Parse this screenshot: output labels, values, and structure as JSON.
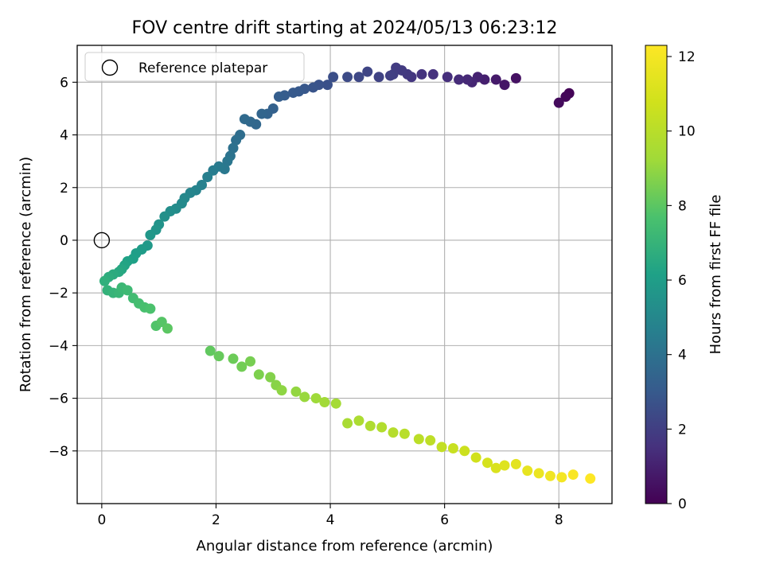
{
  "chart_data": {
    "type": "scatter",
    "title": "FOV centre drift starting at 2024/05/13 06:23:12",
    "xlabel": "Angular distance from reference (arcmin)",
    "ylabel": "Rotation from reference (arcmin)",
    "xlim": [
      -0.43,
      8.93
    ],
    "ylim": [
      -10.0,
      7.4
    ],
    "x_ticks": [
      0,
      2,
      4,
      6,
      8
    ],
    "y_ticks": [
      -8,
      -6,
      -4,
      -2,
      0,
      2,
      4,
      6
    ],
    "grid": true,
    "legend": {
      "position": "upper-left",
      "entries": [
        {
          "label": "Reference platepar",
          "marker": "open-circle"
        }
      ]
    },
    "reference_point": {
      "x": 0,
      "y": 0
    },
    "colorbar": {
      "label": "Hours from first FF file",
      "colormap": "viridis",
      "min": 0,
      "max": 12.3,
      "ticks": [
        0,
        2,
        4,
        6,
        8,
        10,
        12
      ]
    },
    "series": [
      {
        "points": [
          [
            8.18,
            5.58,
            0.1
          ],
          [
            8.12,
            5.45,
            0.2
          ],
          [
            8.0,
            5.22,
            0.3
          ],
          [
            7.25,
            6.15,
            0.5
          ],
          [
            7.05,
            5.9,
            0.65
          ],
          [
            6.9,
            6.1,
            0.8
          ],
          [
            6.7,
            6.1,
            0.95
          ],
          [
            6.58,
            6.2,
            1.05
          ],
          [
            6.48,
            6.0,
            1.15
          ],
          [
            6.4,
            6.1,
            1.25
          ],
          [
            6.25,
            6.1,
            1.35
          ],
          [
            6.05,
            6.2,
            1.45
          ],
          [
            5.8,
            6.3,
            1.55
          ],
          [
            5.6,
            6.3,
            1.62
          ],
          [
            5.42,
            6.2,
            1.7
          ],
          [
            5.35,
            6.3,
            1.78
          ],
          [
            5.25,
            6.45,
            1.85
          ],
          [
            5.15,
            6.55,
            1.9
          ],
          [
            5.1,
            6.3,
            1.98
          ],
          [
            5.05,
            6.25,
            2.05
          ],
          [
            4.85,
            6.2,
            2.15
          ],
          [
            4.65,
            6.4,
            2.25
          ],
          [
            4.5,
            6.2,
            2.35
          ],
          [
            4.3,
            6.2,
            2.45
          ],
          [
            4.05,
            6.2,
            2.55
          ],
          [
            3.95,
            5.9,
            2.65
          ],
          [
            3.8,
            5.9,
            2.72
          ],
          [
            3.7,
            5.8,
            2.8
          ],
          [
            3.55,
            5.75,
            2.88
          ],
          [
            3.45,
            5.65,
            2.95
          ],
          [
            3.35,
            5.6,
            3.02
          ],
          [
            3.2,
            5.5,
            3.1
          ],
          [
            3.1,
            5.45,
            3.18
          ],
          [
            3.0,
            5.0,
            3.3
          ],
          [
            2.9,
            4.8,
            3.4
          ],
          [
            2.8,
            4.8,
            3.48
          ],
          [
            2.7,
            4.4,
            3.55
          ],
          [
            2.6,
            4.5,
            3.62
          ],
          [
            2.5,
            4.6,
            3.7
          ],
          [
            2.42,
            4.0,
            3.8
          ],
          [
            2.35,
            3.8,
            3.9
          ],
          [
            2.3,
            3.5,
            4.0
          ],
          [
            2.25,
            3.2,
            4.1
          ],
          [
            2.2,
            3.0,
            4.2
          ],
          [
            2.15,
            2.7,
            4.3
          ],
          [
            2.05,
            2.8,
            4.4
          ],
          [
            1.95,
            2.65,
            4.5
          ],
          [
            1.85,
            2.4,
            4.6
          ],
          [
            1.75,
            2.1,
            4.7
          ],
          [
            1.65,
            1.9,
            4.8
          ],
          [
            1.55,
            1.8,
            4.9
          ],
          [
            1.45,
            1.6,
            5.0
          ],
          [
            1.4,
            1.4,
            5.1
          ],
          [
            1.3,
            1.2,
            5.2
          ],
          [
            1.2,
            1.1,
            5.3
          ],
          [
            1.1,
            0.9,
            5.4
          ],
          [
            1.0,
            0.6,
            5.5
          ],
          [
            0.95,
            0.4,
            5.6
          ],
          [
            0.85,
            0.2,
            5.7
          ],
          [
            0.8,
            -0.2,
            5.8
          ],
          [
            0.7,
            -0.35,
            5.9
          ],
          [
            0.6,
            -0.5,
            6.0
          ],
          [
            0.55,
            -0.7,
            6.1
          ],
          [
            0.45,
            -0.8,
            6.2
          ],
          [
            0.4,
            -0.95,
            6.3
          ],
          [
            0.35,
            -1.1,
            6.4
          ],
          [
            0.3,
            -1.2,
            6.5
          ],
          [
            0.2,
            -1.3,
            6.6
          ],
          [
            0.12,
            -1.4,
            6.7
          ],
          [
            0.05,
            -1.55,
            6.8
          ],
          [
            0.1,
            -1.9,
            6.9
          ],
          [
            0.2,
            -2.0,
            7.0
          ],
          [
            0.3,
            -2.0,
            7.1
          ],
          [
            0.35,
            -1.8,
            7.2
          ],
          [
            0.45,
            -1.9,
            7.3
          ],
          [
            0.55,
            -2.2,
            7.4
          ],
          [
            0.65,
            -2.4,
            7.5
          ],
          [
            0.75,
            -2.55,
            7.6
          ],
          [
            0.85,
            -2.6,
            7.7
          ],
          [
            0.95,
            -3.25,
            7.8
          ],
          [
            1.05,
            -3.1,
            7.9
          ],
          [
            1.15,
            -3.35,
            8.0
          ],
          [
            1.9,
            -4.2,
            8.1
          ],
          [
            2.05,
            -4.4,
            8.2
          ],
          [
            2.3,
            -4.5,
            8.3
          ],
          [
            2.45,
            -4.8,
            8.4
          ],
          [
            2.6,
            -4.6,
            8.5
          ],
          [
            2.75,
            -5.1,
            8.6
          ],
          [
            2.95,
            -5.2,
            8.7
          ],
          [
            3.05,
            -5.5,
            8.8
          ],
          [
            3.15,
            -5.7,
            8.9
          ],
          [
            3.4,
            -5.75,
            9.0
          ],
          [
            3.55,
            -5.95,
            9.1
          ],
          [
            3.75,
            -6.0,
            9.2
          ],
          [
            3.9,
            -6.15,
            9.3
          ],
          [
            4.1,
            -6.2,
            9.4
          ],
          [
            4.3,
            -6.95,
            9.5
          ],
          [
            4.5,
            -6.85,
            9.6
          ],
          [
            4.7,
            -7.05,
            9.7
          ],
          [
            4.9,
            -7.1,
            9.8
          ],
          [
            5.1,
            -7.3,
            9.9
          ],
          [
            5.3,
            -7.35,
            10.0
          ],
          [
            5.55,
            -7.55,
            10.1
          ],
          [
            5.75,
            -7.6,
            10.2
          ],
          [
            5.95,
            -7.85,
            10.35
          ],
          [
            6.15,
            -7.9,
            10.5
          ],
          [
            6.35,
            -8.0,
            10.65
          ],
          [
            6.55,
            -8.25,
            10.8
          ],
          [
            6.75,
            -8.45,
            10.95
          ],
          [
            6.9,
            -8.65,
            11.1
          ],
          [
            7.05,
            -8.55,
            11.25
          ],
          [
            7.25,
            -8.5,
            11.4
          ],
          [
            7.45,
            -8.75,
            11.55
          ],
          [
            7.65,
            -8.85,
            11.7
          ],
          [
            7.85,
            -8.95,
            11.85
          ],
          [
            8.05,
            -9.0,
            12.0
          ],
          [
            8.25,
            -8.9,
            12.15
          ],
          [
            8.55,
            -9.05,
            12.3
          ]
        ]
      }
    ]
  }
}
